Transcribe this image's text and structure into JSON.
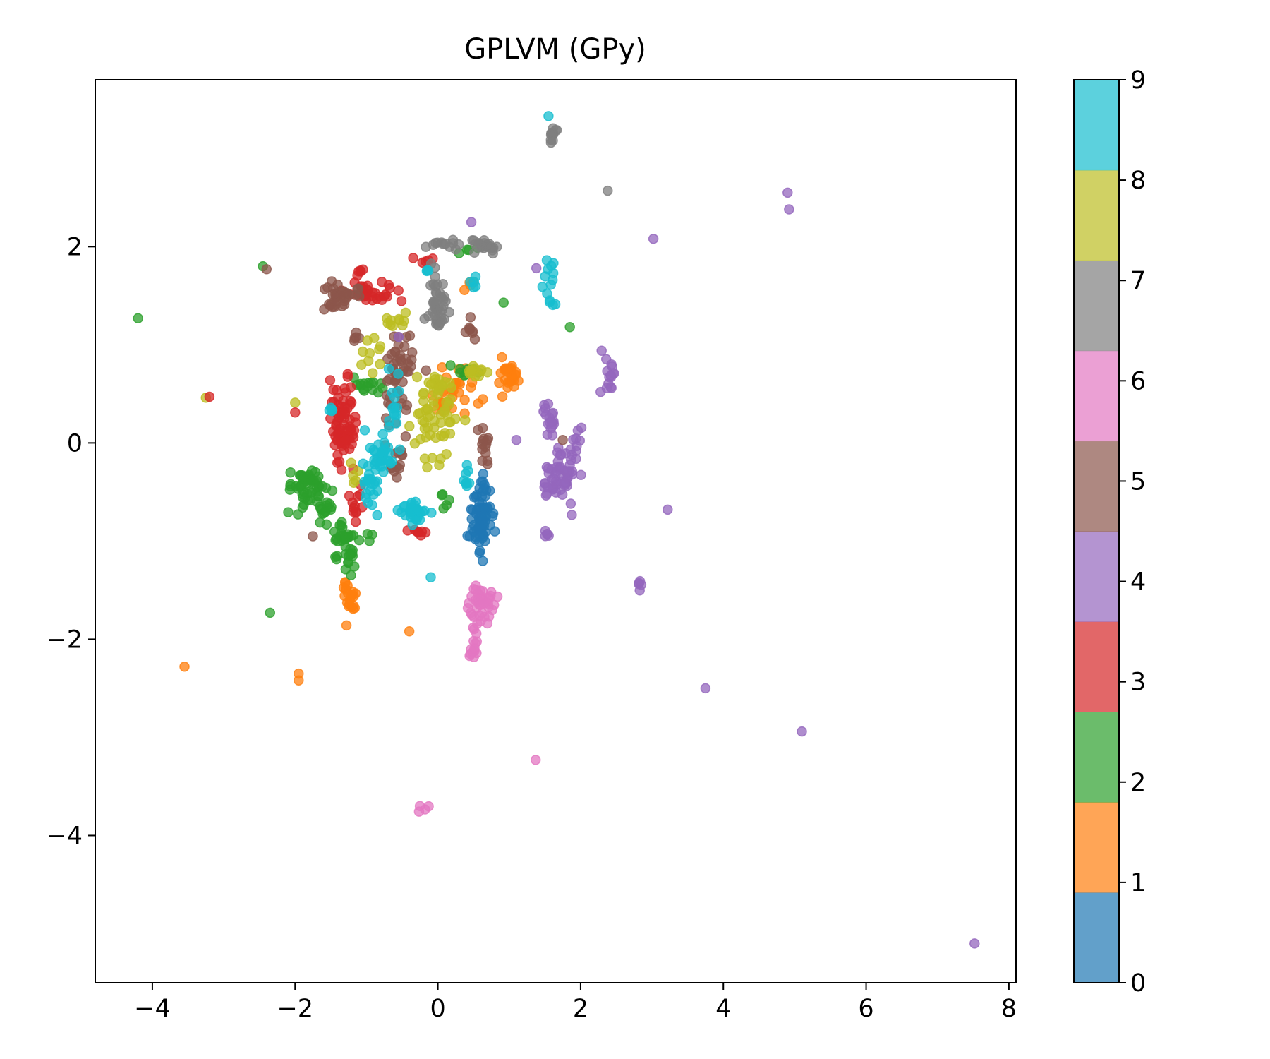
{
  "chart_data": {
    "type": "scatter",
    "title": "GPLVM (GPy)",
    "xlabel": "",
    "ylabel": "",
    "xlim": [
      -4.8,
      8.1
    ],
    "ylim": [
      -5.5,
      3.7
    ],
    "xticks": [
      -4,
      -2,
      0,
      2,
      4,
      6,
      8
    ],
    "yticks": [
      -4,
      -2,
      0,
      2
    ],
    "grid": false,
    "legend": "none",
    "colorbar": {
      "ticks": [
        0,
        1,
        2,
        3,
        4,
        5,
        6,
        7,
        8,
        9
      ],
      "colors": [
        "#1f77b4",
        "#ff7f0e",
        "#2ca02c",
        "#d62728",
        "#9467bd",
        "#8c564b",
        "#e377c2",
        "#7f7f7f",
        "#bcbd22",
        "#17becf"
      ]
    },
    "clusters": [
      {
        "label": 0,
        "cx": 0.6,
        "cy": -0.8,
        "sx": 0.07,
        "sy": 0.16,
        "n": 70
      },
      {
        "label": 0,
        "cx": 0.65,
        "cy": -0.45,
        "sx": 0.04,
        "sy": 0.06,
        "n": 10
      },
      {
        "label": 1,
        "cx": 1.0,
        "cy": 0.75,
        "sx": 0.08,
        "sy": 0.1,
        "n": 30
      },
      {
        "label": 1,
        "cx": 0.3,
        "cy": 0.55,
        "sx": 0.12,
        "sy": 0.12,
        "n": 25
      },
      {
        "label": 1,
        "cx": 0.1,
        "cy": 0.35,
        "sx": 0.08,
        "sy": 0.1,
        "n": 15
      },
      {
        "label": 1,
        "cx": -1.25,
        "cy": -1.55,
        "sx": 0.05,
        "sy": 0.1,
        "n": 22
      },
      {
        "label": 1,
        "cx": 0.45,
        "cy": 1.62,
        "sx": 0.04,
        "sy": 0.04,
        "n": 4
      },
      {
        "label": 2,
        "cx": -1.85,
        "cy": -0.45,
        "sx": 0.13,
        "sy": 0.09,
        "n": 50
      },
      {
        "label": 2,
        "cx": -1.55,
        "cy": -0.65,
        "sx": 0.06,
        "sy": 0.1,
        "n": 18
      },
      {
        "label": 2,
        "cx": -1.32,
        "cy": -1.05,
        "sx": 0.08,
        "sy": 0.14,
        "n": 40
      },
      {
        "label": 2,
        "cx": -1.0,
        "cy": 0.58,
        "sx": 0.15,
        "sy": 0.04,
        "n": 15
      },
      {
        "label": 2,
        "cx": 0.35,
        "cy": 0.72,
        "sx": 0.15,
        "sy": 0.03,
        "n": 10
      },
      {
        "label": 2,
        "cx": 0.05,
        "cy": -0.6,
        "sx": 0.05,
        "sy": 0.05,
        "n": 5
      },
      {
        "label": 2,
        "cx": 0.45,
        "cy": 1.97,
        "sx": 0.1,
        "sy": 0.04,
        "n": 4
      },
      {
        "label": 2,
        "cx": -0.95,
        "cy": -0.95,
        "sx": 0.04,
        "sy": 0.04,
        "n": 3
      },
      {
        "label": 3,
        "cx": -1.3,
        "cy": 0.15,
        "sx": 0.07,
        "sy": 0.22,
        "n": 60
      },
      {
        "label": 3,
        "cx": -1.45,
        "cy": 0.3,
        "sx": 0.06,
        "sy": 0.15,
        "n": 15
      },
      {
        "label": 3,
        "cx": -0.95,
        "cy": 1.55,
        "sx": 0.18,
        "sy": 0.06,
        "n": 30
      },
      {
        "label": 3,
        "cx": -1.1,
        "cy": 1.75,
        "sx": 0.05,
        "sy": 0.05,
        "n": 6
      },
      {
        "label": 3,
        "cx": -1.15,
        "cy": -0.65,
        "sx": 0.08,
        "sy": 0.1,
        "n": 12
      },
      {
        "label": 3,
        "cx": -0.25,
        "cy": -0.92,
        "sx": 0.05,
        "sy": 0.04,
        "n": 8
      },
      {
        "label": 3,
        "cx": -0.2,
        "cy": 1.88,
        "sx": 0.08,
        "sy": 0.03,
        "n": 5
      },
      {
        "label": 4,
        "cx": 1.7,
        "cy": -0.35,
        "sx": 0.12,
        "sy": 0.12,
        "n": 55
      },
      {
        "label": 4,
        "cx": 1.9,
        "cy": -0.05,
        "sx": 0.06,
        "sy": 0.08,
        "n": 12
      },
      {
        "label": 4,
        "cx": 1.55,
        "cy": 0.25,
        "sx": 0.05,
        "sy": 0.1,
        "n": 18
      },
      {
        "label": 4,
        "cx": 1.55,
        "cy": -0.92,
        "sx": 0.03,
        "sy": 0.04,
        "n": 5
      },
      {
        "label": 4,
        "cx": 2.38,
        "cy": 0.75,
        "sx": 0.04,
        "sy": 0.15,
        "n": 15
      },
      {
        "label": 4,
        "cx": 2.82,
        "cy": -1.4,
        "sx": 0.02,
        "sy": 0.05,
        "n": 5
      },
      {
        "label": 5,
        "cx": -1.35,
        "cy": 1.5,
        "sx": 0.12,
        "sy": 0.07,
        "n": 35
      },
      {
        "label": 5,
        "cx": -0.55,
        "cy": 0.75,
        "sx": 0.12,
        "sy": 0.25,
        "n": 50
      },
      {
        "label": 5,
        "cx": -0.6,
        "cy": -0.15,
        "sx": 0.08,
        "sy": 0.12,
        "n": 15
      },
      {
        "label": 5,
        "cx": 0.65,
        "cy": -0.05,
        "sx": 0.05,
        "sy": 0.12,
        "n": 14
      },
      {
        "label": 5,
        "cx": 0.45,
        "cy": 1.1,
        "sx": 0.05,
        "sy": 0.1,
        "n": 8
      },
      {
        "label": 5,
        "cx": -1.15,
        "cy": 1.1,
        "sx": 0.05,
        "sy": 0.05,
        "n": 5
      },
      {
        "label": 6,
        "cx": 0.6,
        "cy": -1.65,
        "sx": 0.08,
        "sy": 0.1,
        "n": 40
      },
      {
        "label": 6,
        "cx": 0.5,
        "cy": -2.05,
        "sx": 0.03,
        "sy": 0.15,
        "n": 15
      },
      {
        "label": 6,
        "cx": -0.2,
        "cy": -3.72,
        "sx": 0.03,
        "sy": 0.03,
        "n": 4
      },
      {
        "label": 7,
        "cx": 0.0,
        "cy": 1.4,
        "sx": 0.07,
        "sy": 0.17,
        "n": 40
      },
      {
        "label": 7,
        "cx": 0.65,
        "cy": 2.0,
        "sx": 0.12,
        "sy": 0.04,
        "n": 25
      },
      {
        "label": 7,
        "cx": 0.1,
        "cy": 2.03,
        "sx": 0.1,
        "sy": 0.03,
        "n": 12
      },
      {
        "label": 7,
        "cx": 1.6,
        "cy": 3.15,
        "sx": 0.03,
        "sy": 0.05,
        "n": 12
      },
      {
        "label": 8,
        "cx": -0.05,
        "cy": 0.2,
        "sx": 0.15,
        "sy": 0.25,
        "n": 50
      },
      {
        "label": 8,
        "cx": 0.05,
        "cy": 0.6,
        "sx": 0.12,
        "sy": 0.05,
        "n": 15
      },
      {
        "label": 8,
        "cx": 0.55,
        "cy": 0.72,
        "sx": 0.1,
        "sy": 0.03,
        "n": 12
      },
      {
        "label": 8,
        "cx": -0.6,
        "cy": 1.25,
        "sx": 0.1,
        "sy": 0.05,
        "n": 10
      },
      {
        "label": 8,
        "cx": -0.95,
        "cy": 0.9,
        "sx": 0.08,
        "sy": 0.1,
        "n": 10
      },
      {
        "label": 8,
        "cx": -1.2,
        "cy": -0.3,
        "sx": 0.05,
        "sy": 0.1,
        "n": 5
      },
      {
        "label": 9,
        "cx": -0.8,
        "cy": -0.1,
        "sx": 0.08,
        "sy": 0.1,
        "n": 30
      },
      {
        "label": 9,
        "cx": -0.95,
        "cy": -0.45,
        "sx": 0.06,
        "sy": 0.12,
        "n": 20
      },
      {
        "label": 9,
        "cx": -0.3,
        "cy": -0.7,
        "sx": 0.12,
        "sy": 0.05,
        "n": 30
      },
      {
        "label": 9,
        "cx": -0.6,
        "cy": 0.35,
        "sx": 0.05,
        "sy": 0.2,
        "n": 15
      },
      {
        "label": 9,
        "cx": 1.6,
        "cy": 1.6,
        "sx": 0.05,
        "sy": 0.15,
        "n": 14
      },
      {
        "label": 9,
        "cx": 0.4,
        "cy": -0.4,
        "sx": 0.03,
        "sy": 0.1,
        "n": 8
      },
      {
        "label": 9,
        "cx": 0.5,
        "cy": 1.6,
        "sx": 0.03,
        "sy": 0.03,
        "n": 5
      },
      {
        "label": 9,
        "cx": -1.5,
        "cy": 0.3,
        "sx": 0.03,
        "sy": 0.03,
        "n": 4
      },
      {
        "label": 9,
        "cx": -0.15,
        "cy": 1.75,
        "sx": 0.03,
        "sy": 0.02,
        "n": 3
      }
    ],
    "points": [
      {
        "x": -4.2,
        "y": 1.27,
        "label": 2
      },
      {
        "x": -2.45,
        "y": 1.8,
        "label": 2
      },
      {
        "x": -2.4,
        "y": 1.77,
        "label": 5
      },
      {
        "x": -3.25,
        "y": 0.46,
        "label": 8
      },
      {
        "x": -3.2,
        "y": 0.47,
        "label": 3
      },
      {
        "x": -2.0,
        "y": 0.41,
        "label": 8
      },
      {
        "x": -2.0,
        "y": 0.31,
        "label": 3
      },
      {
        "x": -2.35,
        "y": -1.73,
        "label": 2
      },
      {
        "x": -3.55,
        "y": -2.28,
        "label": 1
      },
      {
        "x": -1.95,
        "y": -2.35,
        "label": 1
      },
      {
        "x": -1.95,
        "y": -2.42,
        "label": 1
      },
      {
        "x": -0.4,
        "y": -1.92,
        "label": 1
      },
      {
        "x": -0.1,
        "y": -1.37,
        "label": 9
      },
      {
        "x": 1.37,
        "y": -3.23,
        "label": 6
      },
      {
        "x": 1.85,
        "y": 1.18,
        "label": 2
      },
      {
        "x": 0.92,
        "y": 1.43,
        "label": 2
      },
      {
        "x": 1.1,
        "y": 0.03,
        "label": 4
      },
      {
        "x": 2.38,
        "y": 2.57,
        "label": 7
      },
      {
        "x": 1.55,
        "y": 3.33,
        "label": 9
      },
      {
        "x": 4.9,
        "y": 2.55,
        "label": 4
      },
      {
        "x": 4.92,
        "y": 2.38,
        "label": 4
      },
      {
        "x": 3.02,
        "y": 2.08,
        "label": 4
      },
      {
        "x": 3.22,
        "y": -0.68,
        "label": 4
      },
      {
        "x": 3.75,
        "y": -2.5,
        "label": 4
      },
      {
        "x": 5.1,
        "y": -2.94,
        "label": 4
      },
      {
        "x": 7.52,
        "y": -5.1,
        "label": 4
      },
      {
        "x": 1.38,
        "y": 1.78,
        "label": 4
      },
      {
        "x": 0.47,
        "y": 2.25,
        "label": 4
      },
      {
        "x": -1.75,
        "y": -0.95,
        "label": 5
      },
      {
        "x": -0.55,
        "y": 1.08,
        "label": 4
      },
      {
        "x": 1.75,
        "y": 0.03,
        "label": 5
      }
    ]
  }
}
